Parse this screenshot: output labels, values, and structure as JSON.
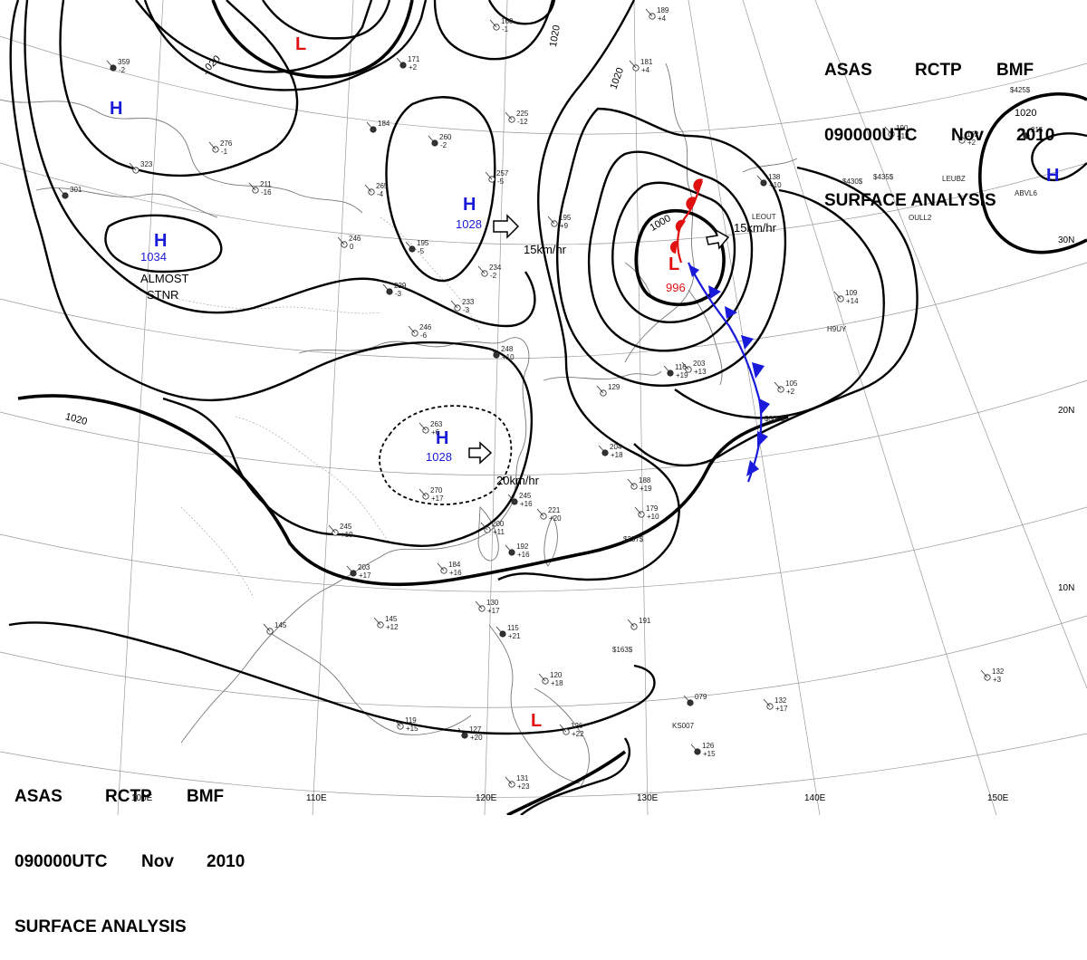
{
  "header": {
    "line1": [
      "ASAS",
      "RCTP",
      "BMF"
    ],
    "line2": [
      "090000UTC",
      "Nov",
      "2010"
    ],
    "line3": "SURFACE ANALYSIS"
  },
  "colors": {
    "high": "#1a1adb",
    "low": "#e01010",
    "cold_front": "#1a1adb",
    "warm_front": "#e01010",
    "isobar": "#000000"
  },
  "isobar_labels": [
    "1020",
    "1020",
    "1020",
    "1020",
    "1020",
    "1000"
  ],
  "latitude_labels": [
    "30N",
    "20N",
    "10N"
  ],
  "longitude_labels": [
    "100E",
    "110E",
    "120E",
    "130E",
    "140E",
    "150E"
  ],
  "pressure_centers": [
    {
      "type": "H",
      "pressure": ""
    },
    {
      "type": "H",
      "pressure": "1034"
    },
    {
      "type": "H",
      "pressure": "1028"
    },
    {
      "type": "H",
      "pressure": "1028"
    },
    {
      "type": "H",
      "pressure": ""
    },
    {
      "type": "L",
      "pressure": ""
    },
    {
      "type": "L",
      "pressure": "996"
    },
    {
      "type": "L",
      "pressure": ""
    }
  ],
  "movement": [
    {
      "speed": "15km/hr"
    },
    {
      "speed": "15km/hr"
    },
    {
      "speed": "20km/hr"
    }
  ],
  "notes": [
    "ALMOST",
    "STNR"
  ],
  "stations": [
    {
      "t": "359",
      "p": "-2"
    },
    {
      "t": "160",
      "p": "-1"
    },
    {
      "t": "189",
      "p": "+4"
    },
    {
      "t": "171",
      "p": "+2"
    },
    {
      "t": "181",
      "p": "+4"
    },
    {
      "t": "225",
      "p": "-12"
    },
    {
      "t": "260",
      "p": "-2"
    },
    {
      "t": "276",
      "p": "-1"
    },
    {
      "t": "323",
      "p": ""
    },
    {
      "t": "301",
      "p": ""
    },
    {
      "t": "211",
      "p": "-16"
    },
    {
      "t": "265",
      "p": "-4"
    },
    {
      "t": "184",
      "p": ""
    },
    {
      "t": "257",
      "p": "-5"
    },
    {
      "t": "246",
      "p": "0"
    },
    {
      "t": "195",
      "p": "-5"
    },
    {
      "t": "195",
      "p": "+9"
    },
    {
      "t": "234",
      "p": "-2"
    },
    {
      "t": "229",
      "p": "-3"
    },
    {
      "t": "233",
      "p": "-3"
    },
    {
      "t": "246",
      "p": "-6"
    },
    {
      "t": "248",
      "p": "+10"
    },
    {
      "t": "263",
      "p": "+6"
    },
    {
      "t": "270",
      "p": "+17"
    },
    {
      "t": "245",
      "p": "+16"
    },
    {
      "t": "221",
      "p": "+20"
    },
    {
      "t": "200",
      "p": "+11"
    },
    {
      "t": "192",
      "p": "+16"
    },
    {
      "t": "184",
      "p": "+16"
    },
    {
      "t": "245",
      "p": "+19"
    },
    {
      "t": "203",
      "p": "+17"
    },
    {
      "t": "145",
      "p": "+12"
    },
    {
      "t": "145",
      "p": ""
    },
    {
      "t": "204",
      "p": "+18"
    },
    {
      "t": "188",
      "p": "+19"
    },
    {
      "t": "179",
      "p": "+10"
    },
    {
      "t": "116",
      "p": "+19"
    },
    {
      "t": "105",
      "p": "+2"
    },
    {
      "t": "203",
      "p": "+13"
    },
    {
      "t": "138",
      "p": "+10"
    },
    {
      "t": "190",
      "p": "+13"
    },
    {
      "t": "192",
      "p": "+2"
    },
    {
      "t": "215",
      "p": ""
    },
    {
      "t": "109",
      "p": "+14"
    },
    {
      "t": "130",
      "p": "+17"
    },
    {
      "t": "115",
      "p": "+21"
    },
    {
      "t": "120",
      "p": "+18"
    },
    {
      "t": "126",
      "p": "+22"
    },
    {
      "t": "127",
      "p": "+20"
    },
    {
      "t": "119",
      "p": "+15"
    },
    {
      "t": "131",
      "p": "+23"
    },
    {
      "t": "126",
      "p": "+15"
    },
    {
      "t": "132",
      "p": "+17"
    },
    {
      "t": "132",
      "p": "+3"
    },
    {
      "t": "079",
      "p": ""
    },
    {
      "t": "191",
      "p": ""
    },
    {
      "t": "129",
      "p": ""
    }
  ],
  "station_ids": [
    "$163$",
    "$237$",
    "$300$",
    "$435$",
    "$430$",
    "$425$",
    "KS007",
    "H9UY",
    "OULL2",
    "LEOUT",
    "ABVL6",
    "LEUBZ"
  ]
}
